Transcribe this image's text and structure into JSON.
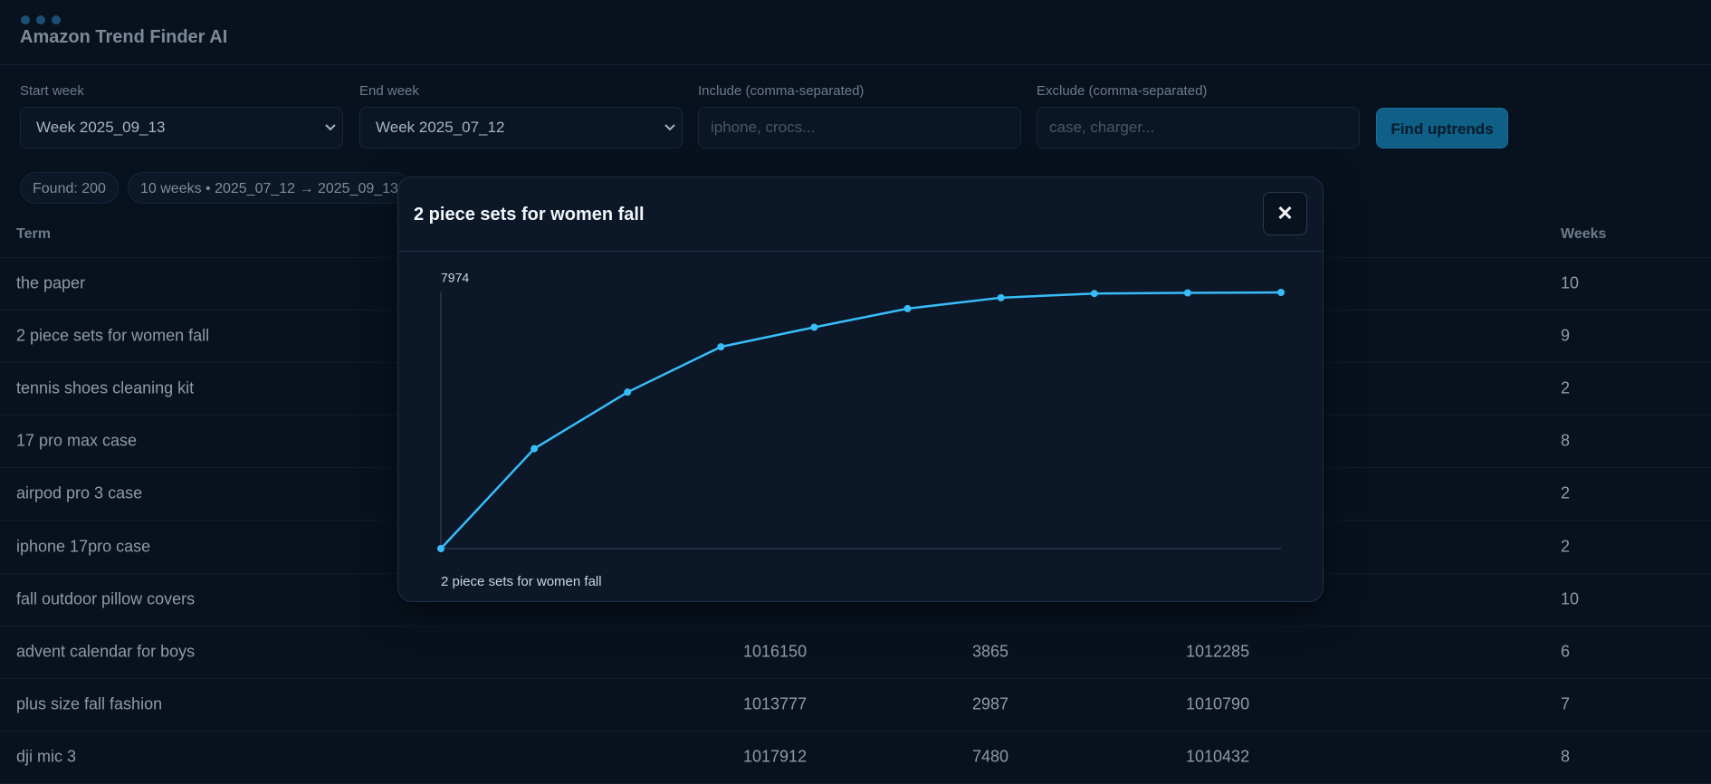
{
  "header": {
    "title": "Amazon Trend Finder AI"
  },
  "filters": {
    "start": {
      "label": "Start week",
      "value": "Week 2025_09_13"
    },
    "end": {
      "label": "End week",
      "value": "Week 2025_07_12"
    },
    "include": {
      "label": "Include (comma-separated)",
      "placeholder": "iphone, crocs..."
    },
    "exclude": {
      "label": "Exclude (comma-separated)",
      "placeholder": "case, charger..."
    },
    "button": "Find uptrends"
  },
  "chips": [
    "Found: 200",
    "10 weeks • 2025_07_12 → 2025_09_13"
  ],
  "table": {
    "header": {
      "term": "Term",
      "weeks": "Weeks"
    },
    "rows": [
      {
        "term": "the paper",
        "weeks": 10
      },
      {
        "term": "2 piece sets for women fall",
        "weeks": 9
      },
      {
        "term": "tennis shoes cleaning kit",
        "weeks": 2
      },
      {
        "term": "17 pro max case",
        "weeks": 8
      },
      {
        "term": "airpod pro 3 case",
        "weeks": 2
      },
      {
        "term": "iphone 17pro case",
        "weeks": 2
      },
      {
        "term": "fall outdoor pillow covers",
        "weeks": 10
      },
      {
        "term": "advent calendar for boys",
        "stats": [
          1016150,
          3865,
          1012285
        ],
        "weeks": 6
      },
      {
        "term": "plus size fall fashion",
        "stats": [
          1013777,
          2987,
          1010790
        ],
        "weeks": 7
      },
      {
        "term": "dji mic 3",
        "stats": [
          1017912,
          7480,
          1010432
        ],
        "weeks": 8
      }
    ]
  },
  "modal": {
    "title": "2 piece sets for women fall",
    "close": "✕"
  },
  "chart_data": {
    "type": "line",
    "series": [
      {
        "name": "2 piece sets for women fall",
        "color": "#38bdf8",
        "values": [
          0,
          3110,
          4870,
          6280,
          6890,
          7470,
          7810,
          7940,
          7960,
          7974
        ]
      }
    ],
    "ylim": [
      0,
      7974
    ],
    "yticks": [
      7974
    ]
  }
}
